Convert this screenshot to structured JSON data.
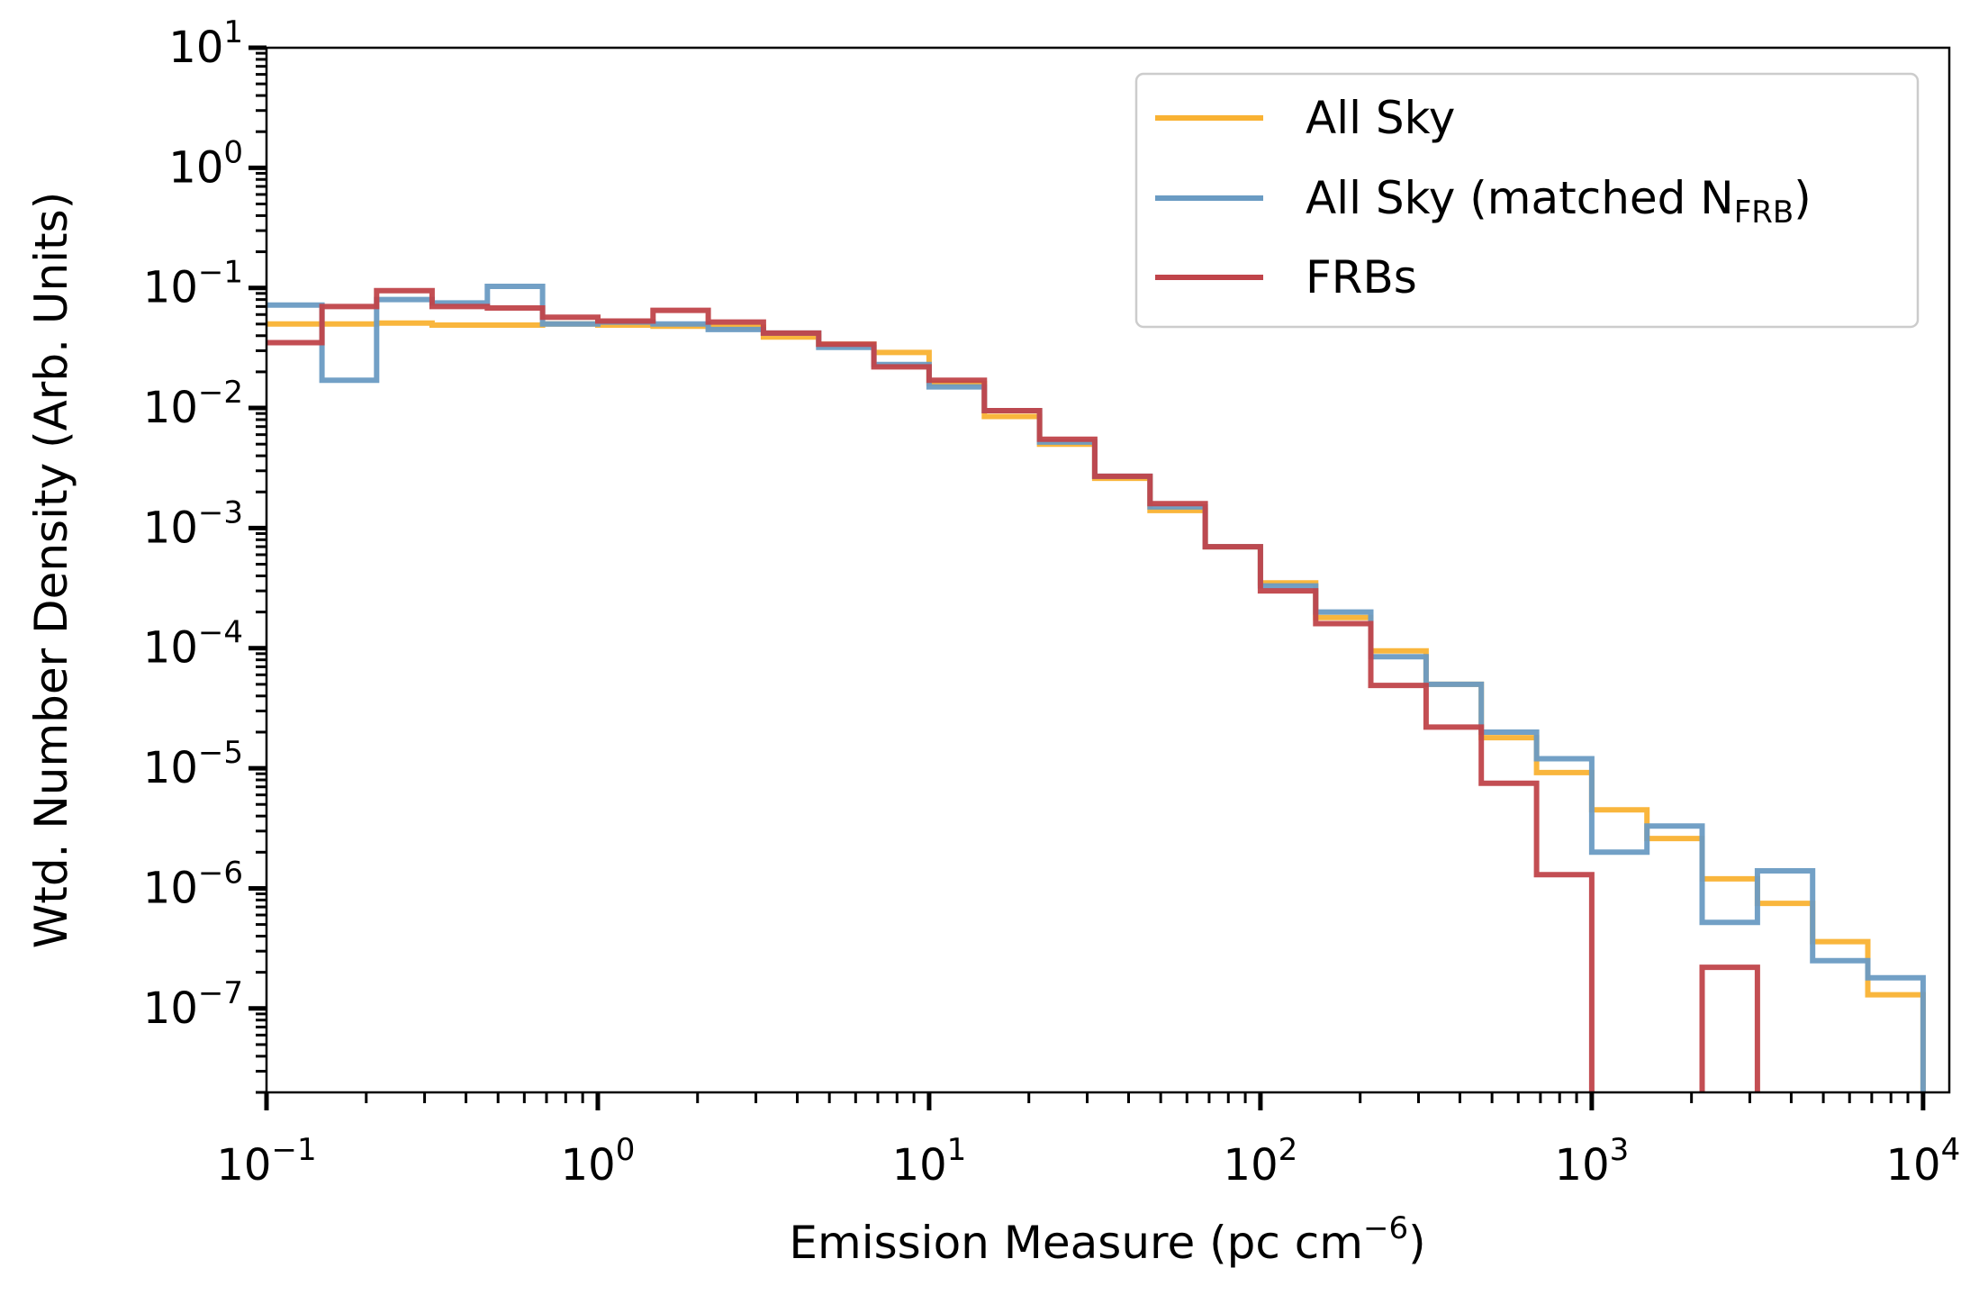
{
  "chart_data": {
    "type": "histogram-step",
    "xscale": "log",
    "yscale": "log",
    "xlim": [
      0.1,
      12000
    ],
    "ylim": [
      2e-08,
      10
    ],
    "xlabel": "Emission Measure (pc cm",
    "xlabel_exponent": "−6",
    "xlabel_suffix": ")",
    "ylabel": "Wtd. Number Density (Arb. Units)",
    "x_tick_base": "10",
    "x_ticks": [
      {
        "value": 0.1,
        "exp": "−1"
      },
      {
        "value": 1,
        "exp": "0"
      },
      {
        "value": 10,
        "exp": "1"
      },
      {
        "value": 100,
        "exp": "2"
      },
      {
        "value": 1000,
        "exp": "3"
      },
      {
        "value": 10000,
        "exp": "4"
      }
    ],
    "y_tick_base": "10",
    "y_ticks": [
      {
        "value": 10,
        "exp": "1"
      },
      {
        "value": 1,
        "exp": "0"
      },
      {
        "value": 0.1,
        "exp": "−1"
      },
      {
        "value": 0.01,
        "exp": "−2"
      },
      {
        "value": 0.001,
        "exp": "−3"
      },
      {
        "value": 0.0001,
        "exp": "−4"
      },
      {
        "value": 1e-05,
        "exp": "−5"
      },
      {
        "value": 1e-06,
        "exp": "−6"
      },
      {
        "value": 1e-07,
        "exp": "−7"
      }
    ],
    "legend_position": "top-right",
    "bin_edges": [
      0.1,
      0.147,
      0.215,
      0.316,
      0.464,
      0.681,
      1.0,
      1.468,
      2.154,
      3.162,
      4.642,
      6.813,
      10.0,
      14.68,
      21.54,
      31.62,
      46.42,
      68.13,
      100.0,
      146.8,
      215.4,
      316.2,
      464.2,
      681.3,
      1000.0,
      1468,
      2154,
      3162,
      4642,
      6813,
      10000,
      14678
    ],
    "series": [
      {
        "name": "All Sky",
        "name_sub": "",
        "name_suffix": "",
        "color": "#f9b233",
        "values": [
          0.05,
          0.05,
          0.051,
          0.049,
          0.049,
          0.05,
          0.049,
          0.048,
          0.047,
          0.039,
          0.034,
          0.029,
          0.016,
          0.0085,
          0.005,
          0.0026,
          0.0014,
          0.0007,
          0.00035,
          0.00018,
          9.5e-05,
          5e-05,
          1.8e-05,
          9.2e-06,
          4.5e-06,
          2.6e-06,
          1.2e-06,
          7.5e-07,
          3.6e-07,
          1.3e-07,
          1.8e-08
        ]
      },
      {
        "name": "All Sky (matched N",
        "name_sub": "FRB",
        "name_suffix": ")",
        "color": "#6a9bc3",
        "values": [
          0.072,
          0.017,
          0.08,
          0.075,
          0.103,
          0.05,
          0.052,
          0.05,
          0.045,
          0.042,
          0.032,
          0.023,
          0.015,
          0.0095,
          0.0052,
          0.0027,
          0.0015,
          0.0007,
          0.00033,
          0.0002,
          8.5e-05,
          5e-05,
          2e-05,
          1.2e-05,
          2e-06,
          3.3e-06,
          5.2e-07,
          1.4e-06,
          2.5e-07,
          1.8e-07
        ]
      },
      {
        "name": "FRBs",
        "name_sub": "",
        "name_suffix": "",
        "color": "#c0444a",
        "values": [
          0.035,
          0.07,
          0.095,
          0.07,
          0.068,
          0.057,
          0.053,
          0.065,
          0.052,
          0.042,
          0.034,
          0.022,
          0.017,
          0.0095,
          0.0055,
          0.0027,
          0.0016,
          0.0007,
          0.0003,
          0.00016,
          4.9e-05,
          2.2e-05,
          7.5e-06,
          1.3e-06,
          1e-10,
          1e-10,
          2.2e-07
        ]
      }
    ]
  }
}
